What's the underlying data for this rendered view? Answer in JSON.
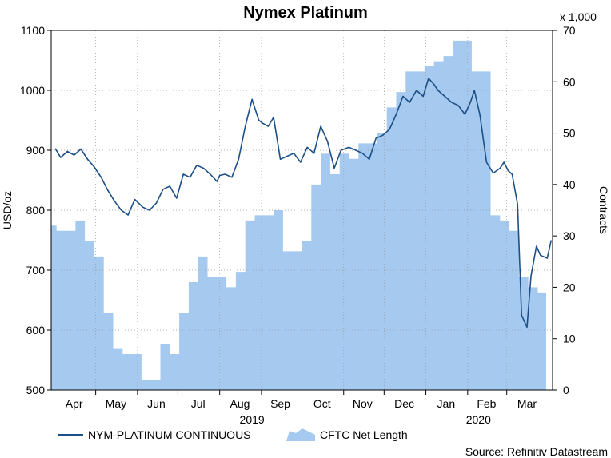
{
  "chart_data": {
    "type": "line",
    "title": "Nymex Platinum",
    "left_axis": {
      "title": "USD/oz",
      "ylim": [
        500,
        1100
      ],
      "ticks": [
        500,
        600,
        700,
        800,
        900,
        1000,
        1100
      ]
    },
    "right_axis": {
      "title": "Contracts",
      "multiplier_label": "x 1,000",
      "ylim": [
        0,
        70
      ],
      "ticks": [
        0,
        10,
        20,
        30,
        40,
        50,
        60,
        70
      ]
    },
    "x_axis": {
      "months": [
        "Apr",
        "May",
        "Jun",
        "Jul",
        "Aug",
        "Sep",
        "Oct",
        "Nov",
        "Dec",
        "Jan",
        "Feb",
        "Mar"
      ],
      "years": [
        "2019",
        "2020"
      ]
    },
    "grid": true,
    "legend_position": "bottom",
    "series": [
      {
        "name": "NYM-PLATINUM CONTINUOUS",
        "axis": "left",
        "style": "line",
        "color": "#1b4f86",
        "x": [
          "2019-04-01",
          "2019-04-05",
          "2019-04-10",
          "2019-04-15",
          "2019-04-20",
          "2019-04-25",
          "2019-04-30",
          "2019-05-05",
          "2019-05-10",
          "2019-05-15",
          "2019-05-20",
          "2019-05-25",
          "2019-05-30",
          "2019-06-05",
          "2019-06-10",
          "2019-06-15",
          "2019-06-20",
          "2019-06-25",
          "2019-06-30",
          "2019-07-05",
          "2019-07-10",
          "2019-07-15",
          "2019-07-20",
          "2019-07-25",
          "2019-07-30",
          "2019-08-01",
          "2019-08-05",
          "2019-08-10",
          "2019-08-15",
          "2019-08-20",
          "2019-08-25",
          "2019-08-30",
          "2019-09-02",
          "2019-09-06",
          "2019-09-10",
          "2019-09-15",
          "2019-09-20",
          "2019-09-25",
          "2019-09-30",
          "2019-10-05",
          "2019-10-10",
          "2019-10-15",
          "2019-10-20",
          "2019-10-25",
          "2019-10-30",
          "2019-11-05",
          "2019-11-10",
          "2019-11-15",
          "2019-11-20",
          "2019-11-25",
          "2019-11-30",
          "2019-12-05",
          "2019-12-10",
          "2019-12-15",
          "2019-12-20",
          "2019-12-25",
          "2019-12-30",
          "2020-01-03",
          "2020-01-07",
          "2020-01-10",
          "2020-01-15",
          "2020-01-20",
          "2020-01-25",
          "2020-01-30",
          "2020-02-03",
          "2020-02-06",
          "2020-02-10",
          "2020-02-15",
          "2020-02-20",
          "2020-02-25",
          "2020-02-28",
          "2020-03-02",
          "2020-03-05",
          "2020-03-09",
          "2020-03-12",
          "2020-03-16",
          "2020-03-19",
          "2020-03-23",
          "2020-03-26",
          "2020-03-31",
          "2020-04-03"
        ],
        "values": [
          903,
          888,
          898,
          892,
          902,
          885,
          872,
          855,
          833,
          815,
          800,
          792,
          818,
          805,
          800,
          812,
          835,
          840,
          820,
          860,
          855,
          875,
          870,
          860,
          848,
          858,
          860,
          855,
          885,
          940,
          985,
          950,
          945,
          940,
          955,
          885,
          890,
          895,
          880,
          905,
          895,
          940,
          915,
          870,
          900,
          905,
          900,
          895,
          885,
          920,
          925,
          935,
          960,
          990,
          980,
          1000,
          990,
          1020,
          1010,
          1000,
          990,
          980,
          975,
          960,
          980,
          1000,
          960,
          880,
          862,
          870,
          880,
          866,
          860,
          810,
          625,
          605,
          690,
          740,
          725,
          720,
          750
        ]
      },
      {
        "name": "CFTC Net Length",
        "axis": "right",
        "style": "area",
        "color": "#a5c9ef",
        "x": [
          "2019-03-29",
          "2019-04-02",
          "2019-04-09",
          "2019-04-16",
          "2019-04-23",
          "2019-04-30",
          "2019-05-07",
          "2019-05-14",
          "2019-05-21",
          "2019-05-28",
          "2019-06-04",
          "2019-06-11",
          "2019-06-18",
          "2019-06-25",
          "2019-07-02",
          "2019-07-09",
          "2019-07-16",
          "2019-07-23",
          "2019-07-30",
          "2019-08-06",
          "2019-08-13",
          "2019-08-20",
          "2019-08-27",
          "2019-09-03",
          "2019-09-10",
          "2019-09-17",
          "2019-09-24",
          "2019-10-01",
          "2019-10-08",
          "2019-10-15",
          "2019-10-22",
          "2019-10-29",
          "2019-11-05",
          "2019-11-12",
          "2019-11-19",
          "2019-11-26",
          "2019-12-03",
          "2019-12-10",
          "2019-12-17",
          "2019-12-24",
          "2019-12-31",
          "2020-01-07",
          "2020-01-14",
          "2020-01-21",
          "2020-01-28",
          "2020-02-04",
          "2020-02-11",
          "2020-02-18",
          "2020-02-25",
          "2020-03-03",
          "2020-03-10",
          "2020-03-17",
          "2020-03-24",
          "2020-03-31"
        ],
        "values": [
          32,
          31,
          31,
          33,
          29,
          26,
          15,
          8,
          7,
          7,
          2,
          2,
          9,
          7,
          15,
          21,
          26,
          22,
          22,
          20,
          23,
          33,
          34,
          34,
          35,
          27,
          27,
          29,
          40,
          46,
          42,
          46,
          45,
          48,
          48,
          50,
          55,
          58,
          62,
          62,
          63,
          64,
          65,
          68,
          68,
          62,
          62,
          34,
          33,
          31,
          22,
          20,
          19,
          19
        ]
      }
    ],
    "source": "Source: Refinitiv Datastream"
  }
}
